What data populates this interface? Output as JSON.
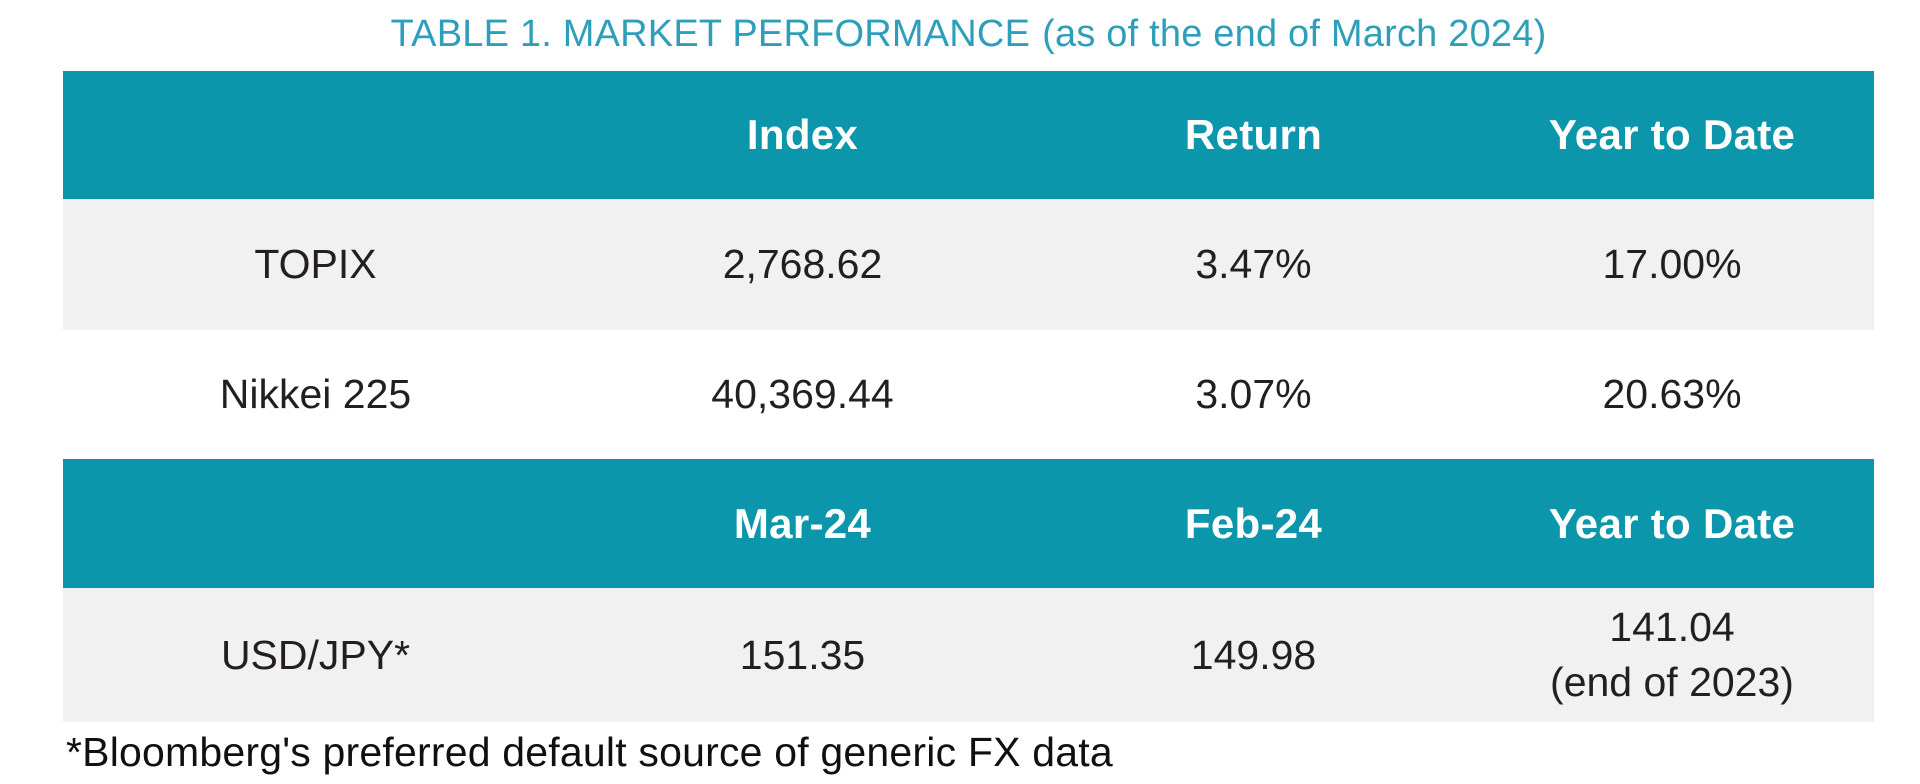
{
  "title": {
    "main": "TABLE 1. MARKET PERFORMANCE",
    "suffix": "(as of the end of March 2024)"
  },
  "equity_table": {
    "columns": [
      "Index",
      "Return",
      "Year to Date"
    ],
    "rows": [
      {
        "name": "TOPIX",
        "index": "2,768.62",
        "return": "3.47%",
        "year_to_date": "17.00%"
      },
      {
        "name": "Nikkei 225",
        "index": "40,369.44",
        "return": "3.07%",
        "year_to_date": "20.63%"
      }
    ]
  },
  "fx_table": {
    "columns": [
      "Mar-24",
      "Feb-24",
      "Year to Date"
    ],
    "rows": [
      {
        "name": "USD/JPY*",
        "mar_24": "151.35",
        "feb_24": "149.98",
        "year_to_date_line1": "141.04",
        "year_to_date_line2": "(end of 2023)"
      }
    ]
  },
  "footnote": "*Bloomberg's preferred default source of generic FX data",
  "colors": {
    "header_teal": "#0c96ac",
    "title_teal": "#2e9fba",
    "row_stripe_gray": "#f1f1f2",
    "header_text": "#ffffff",
    "body_text": "#231f20"
  }
}
